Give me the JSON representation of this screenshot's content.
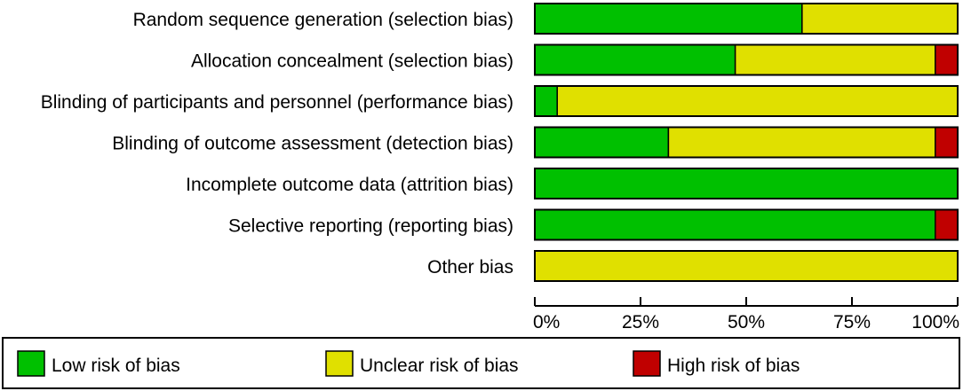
{
  "chart_data": {
    "type": "bar",
    "orientation": "horizontal",
    "stacked": true,
    "categories": [
      "Random sequence generation (selection bias)",
      "Allocation concealment (selection bias)",
      "Blinding of participants and personnel (performance bias)",
      "Blinding of outcome assessment (detection bias)",
      "Incomplete outcome data (attrition bias)",
      "Selective reporting (reporting bias)",
      "Other bias"
    ],
    "series": [
      {
        "name": "Low risk of bias",
        "color": "#00c000",
        "values": [
          63.2,
          47.4,
          5.3,
          31.6,
          100,
          94.7,
          0
        ]
      },
      {
        "name": "Unclear risk of bias",
        "color": "#e0e000",
        "values": [
          36.8,
          47.3,
          94.7,
          63.1,
          0,
          0,
          100
        ]
      },
      {
        "name": "High risk of bias",
        "color": "#c00000",
        "values": [
          0,
          5.3,
          0,
          5.3,
          0,
          5.3,
          0
        ]
      }
    ],
    "xlim": [
      0,
      100
    ],
    "xticks": [
      0,
      25,
      50,
      75,
      100
    ],
    "xtick_labels": [
      "0%",
      "25%",
      "50%",
      "75%",
      "100%"
    ],
    "legend_position": "bottom",
    "grid": false
  }
}
